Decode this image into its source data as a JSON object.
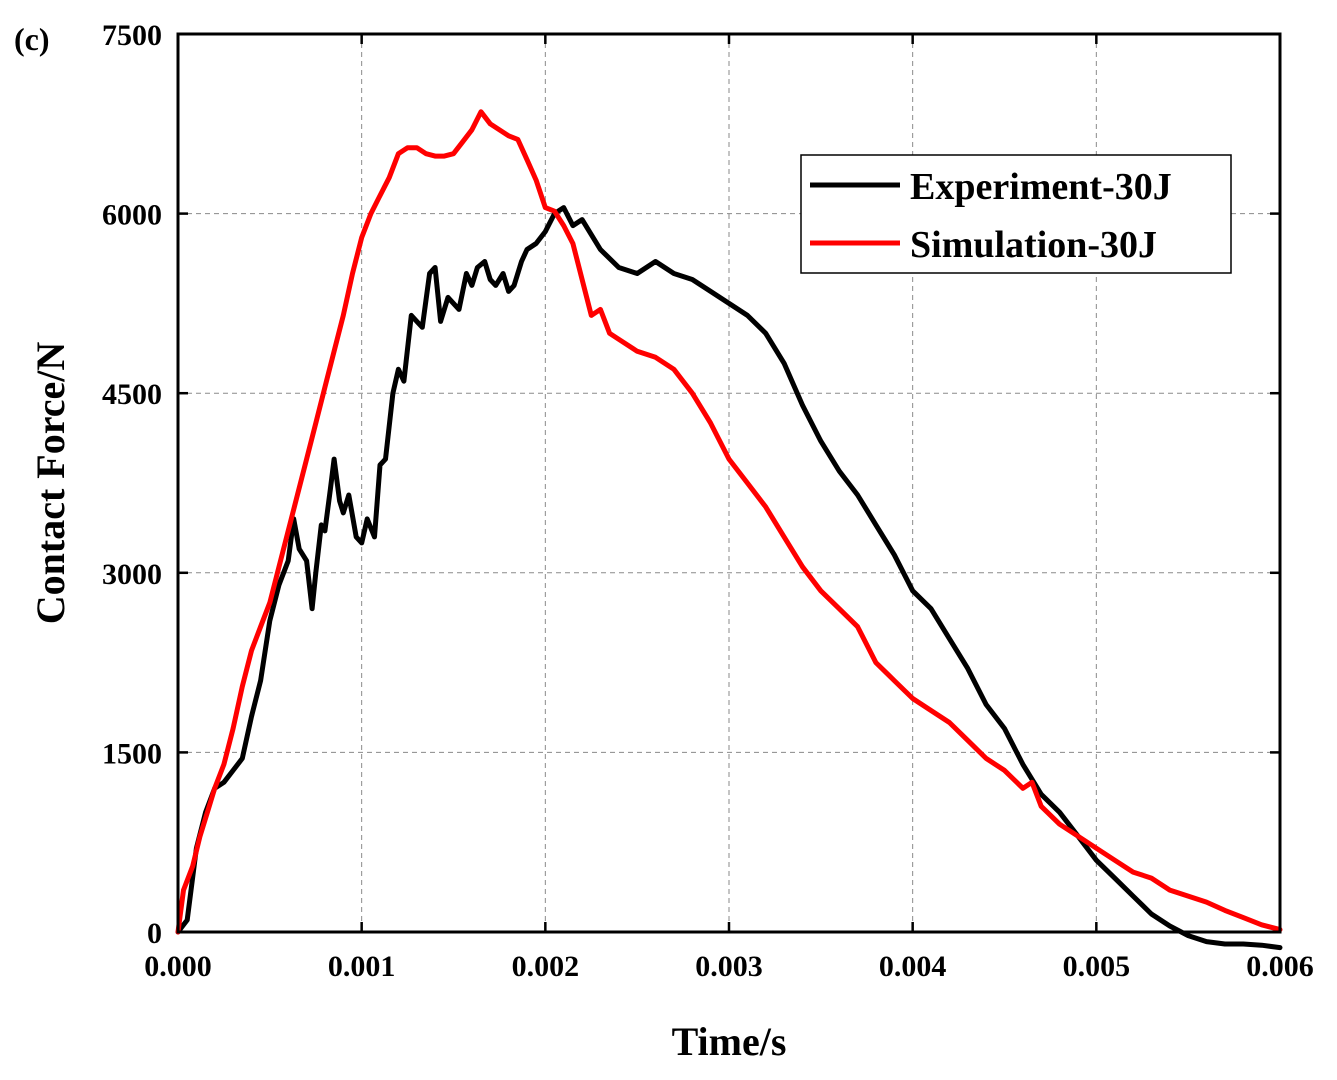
{
  "chart_data": {
    "type": "line",
    "panel_label": "(c)",
    "title": "",
    "xlabel": "Time/s",
    "ylabel": "Contact Force/N",
    "xlim": [
      0,
      0.006
    ],
    "ylim": [
      0,
      7500
    ],
    "grid": true,
    "legend_position": "top-right",
    "x_ticks": [
      0,
      0.001,
      0.002,
      0.003,
      0.004,
      0.005,
      0.006
    ],
    "x_tick_labels": [
      "0.000",
      "0.001",
      "0.002",
      "0.003",
      "0.004",
      "0.005",
      "0.006"
    ],
    "y_ticks": [
      0,
      1500,
      3000,
      4500,
      6000,
      7500
    ],
    "y_tick_labels": [
      "0",
      "1500",
      "3000",
      "4500",
      "6000",
      "7500"
    ],
    "series": [
      {
        "name": "Experiment-30J",
        "color": "#000000",
        "x": [
          0,
          5e-05,
          0.0001,
          0.00015,
          0.0002,
          0.00025,
          0.0003,
          0.00035,
          0.0004,
          0.00045,
          0.0005,
          0.00055,
          0.0006,
          0.00063,
          0.00066,
          0.0007,
          0.00073,
          0.00075,
          0.00078,
          0.0008,
          0.00083,
          0.00085,
          0.00088,
          0.0009,
          0.00093,
          0.00097,
          0.001,
          0.00103,
          0.00107,
          0.0011,
          0.00113,
          0.00117,
          0.0012,
          0.00123,
          0.00127,
          0.0013,
          0.00133,
          0.00137,
          0.0014,
          0.00143,
          0.00147,
          0.0015,
          0.00153,
          0.00157,
          0.0016,
          0.00163,
          0.00167,
          0.0017,
          0.00173,
          0.00177,
          0.0018,
          0.00183,
          0.00187,
          0.0019,
          0.00195,
          0.002,
          0.00205,
          0.0021,
          0.00215,
          0.0022,
          0.0023,
          0.0024,
          0.0025,
          0.0026,
          0.0027,
          0.0028,
          0.0029,
          0.003,
          0.0031,
          0.0032,
          0.0033,
          0.0034,
          0.0035,
          0.0036,
          0.0037,
          0.0038,
          0.0039,
          0.004,
          0.0041,
          0.0042,
          0.0043,
          0.0044,
          0.0045,
          0.0046,
          0.0047,
          0.0048,
          0.0049,
          0.005,
          0.0051,
          0.0052,
          0.0053,
          0.0054,
          0.0055,
          0.0056,
          0.0057,
          0.0058,
          0.0059,
          0.006
        ],
        "y": [
          0,
          100,
          700,
          1000,
          1200,
          1250,
          1350,
          1450,
          1800,
          2100,
          2600,
          2900,
          3100,
          3450,
          3200,
          3100,
          2700,
          3000,
          3400,
          3350,
          3700,
          3950,
          3600,
          3500,
          3650,
          3300,
          3250,
          3450,
          3300,
          3900,
          3950,
          4500,
          4700,
          4600,
          5150,
          5100,
          5050,
          5500,
          5550,
          5100,
          5300,
          5250,
          5200,
          5500,
          5400,
          5550,
          5600,
          5450,
          5400,
          5500,
          5350,
          5400,
          5600,
          5700,
          5750,
          5850,
          6000,
          6050,
          5900,
          5950,
          5700,
          5550,
          5500,
          5600,
          5500,
          5450,
          5350,
          5250,
          5150,
          5000,
          4750,
          4400,
          4100,
          3850,
          3650,
          3400,
          3150,
          2850,
          2700,
          2450,
          2200,
          1900,
          1700,
          1400,
          1150,
          1000,
          800,
          600,
          450,
          300,
          150,
          50,
          -30,
          -80,
          -100,
          -100,
          -110,
          -130
        ]
      },
      {
        "name": "Simulation-30J",
        "color": "#ff0000",
        "x": [
          0,
          3e-05,
          8e-05,
          0.00012,
          0.00016,
          0.0002,
          0.00025,
          0.0003,
          0.00035,
          0.0004,
          0.00045,
          0.0005,
          0.00055,
          0.0006,
          0.00065,
          0.0007,
          0.00075,
          0.0008,
          0.00085,
          0.0009,
          0.00095,
          0.001,
          0.00105,
          0.0011,
          0.00115,
          0.0012,
          0.00125,
          0.0013,
          0.00135,
          0.0014,
          0.00145,
          0.0015,
          0.00155,
          0.0016,
          0.00165,
          0.0017,
          0.00175,
          0.0018,
          0.00185,
          0.0019,
          0.00195,
          0.002,
          0.00205,
          0.0021,
          0.00215,
          0.0022,
          0.00225,
          0.0023,
          0.00235,
          0.0024,
          0.0025,
          0.0026,
          0.0027,
          0.0028,
          0.0029,
          0.003,
          0.0031,
          0.0032,
          0.0033,
          0.0034,
          0.0035,
          0.0036,
          0.0037,
          0.0038,
          0.0039,
          0.004,
          0.0041,
          0.0042,
          0.0043,
          0.0044,
          0.0045,
          0.0046,
          0.00465,
          0.0047,
          0.0048,
          0.0049,
          0.005,
          0.0051,
          0.0052,
          0.0053,
          0.0054,
          0.0055,
          0.0056,
          0.0057,
          0.0058,
          0.0059,
          0.006
        ],
        "y": [
          0,
          350,
          550,
          800,
          1000,
          1200,
          1400,
          1700,
          2050,
          2350,
          2550,
          2750,
          3050,
          3350,
          3650,
          3950,
          4250,
          4550,
          4850,
          5150,
          5500,
          5800,
          6000,
          6150,
          6300,
          6500,
          6550,
          6550,
          6500,
          6480,
          6480,
          6500,
          6600,
          6700,
          6850,
          6750,
          6700,
          6650,
          6620,
          6450,
          6280,
          6050,
          6020,
          5900,
          5750,
          5450,
          5150,
          5200,
          5000,
          4950,
          4850,
          4800,
          4700,
          4500,
          4250,
          3950,
          3750,
          3550,
          3300,
          3050,
          2850,
          2700,
          2550,
          2250,
          2100,
          1950,
          1850,
          1750,
          1600,
          1450,
          1350,
          1200,
          1250,
          1050,
          900,
          800,
          700,
          600,
          500,
          450,
          350,
          300,
          250,
          180,
          120,
          60,
          20
        ]
      }
    ]
  }
}
